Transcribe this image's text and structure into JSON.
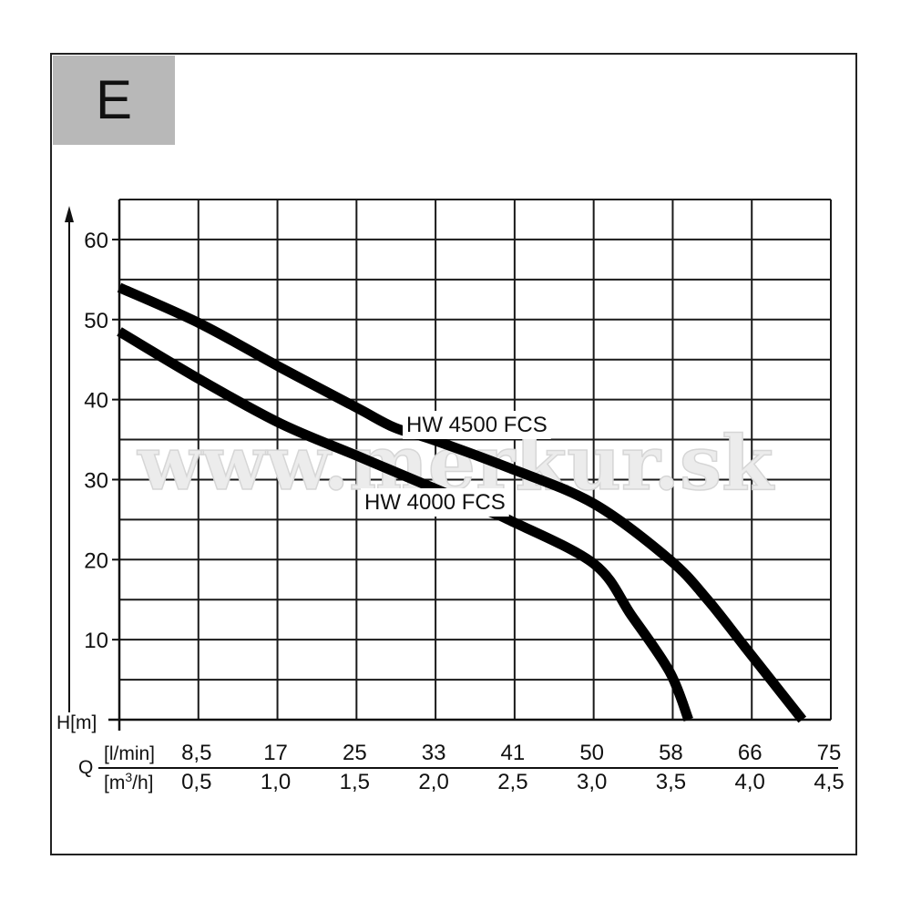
{
  "badge": {
    "letter": "E"
  },
  "watermark": "www.merkur.sk",
  "chart_data": {
    "type": "line",
    "y_axis": {
      "label": "H[m]",
      "ticks": [
        10,
        20,
        30,
        40,
        50,
        60
      ],
      "range": [
        0,
        65
      ]
    },
    "x_axis": {
      "label": "Q",
      "range": [
        0,
        75
      ],
      "primary": {
        "unit": "[l/min]",
        "ticks": [
          "8,5",
          "17",
          "25",
          "33",
          "41",
          "50",
          "58",
          "66",
          "75"
        ]
      },
      "secondary": {
        "unit_base": "[m",
        "unit_sup": "3",
        "unit_tail": "/h]",
        "ticks": [
          "0,5",
          "1,0",
          "1,5",
          "2,0",
          "2,5",
          "3,0",
          "3,5",
          "4,0",
          "4,5"
        ]
      }
    },
    "grid": true,
    "series": [
      {
        "name": "HW 4500 FCS",
        "points": [
          [
            0,
            54
          ],
          [
            8.5,
            49.5
          ],
          [
            17,
            44
          ],
          [
            25,
            39
          ],
          [
            29,
            36.5
          ],
          [
            33,
            35
          ],
          [
            41,
            31.5
          ],
          [
            50,
            27
          ],
          [
            58,
            20
          ],
          [
            62,
            15
          ],
          [
            66,
            9
          ],
          [
            72,
            0
          ]
        ]
      },
      {
        "name": "HW 4000 FCS",
        "points": [
          [
            0,
            48.5
          ],
          [
            8.5,
            42.5
          ],
          [
            17,
            37
          ],
          [
            25,
            33
          ],
          [
            33,
            29
          ],
          [
            39,
            26
          ],
          [
            41,
            25
          ],
          [
            50,
            19.5
          ],
          [
            54,
            13
          ],
          [
            58,
            6
          ],
          [
            60,
            0
          ]
        ]
      }
    ]
  }
}
